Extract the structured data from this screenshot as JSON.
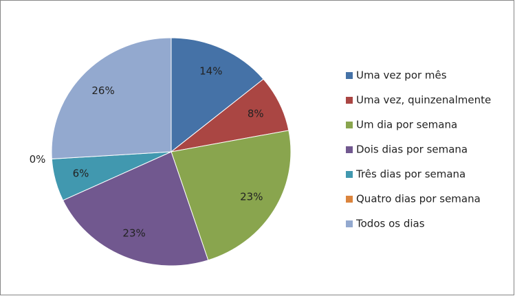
{
  "chart_data": {
    "type": "pie",
    "categories": [
      "Uma vez por mês",
      "Uma vez, quinzenalmente",
      "Um dia por semana",
      "Dois dias por semana",
      "Três dias por semana",
      "Quatro dias por semana",
      "Todos os dias"
    ],
    "values": [
      14,
      8,
      23,
      23,
      6,
      0,
      26
    ],
    "value_labels": [
      "14%",
      "8%",
      "23%",
      "23%",
      "6%",
      "0%",
      "26%"
    ],
    "colors": [
      "#4572a7",
      "#aa4643",
      "#89a54e",
      "#71588f",
      "#4198af",
      "#db843d",
      "#93a9cf"
    ],
    "legend": "right"
  }
}
